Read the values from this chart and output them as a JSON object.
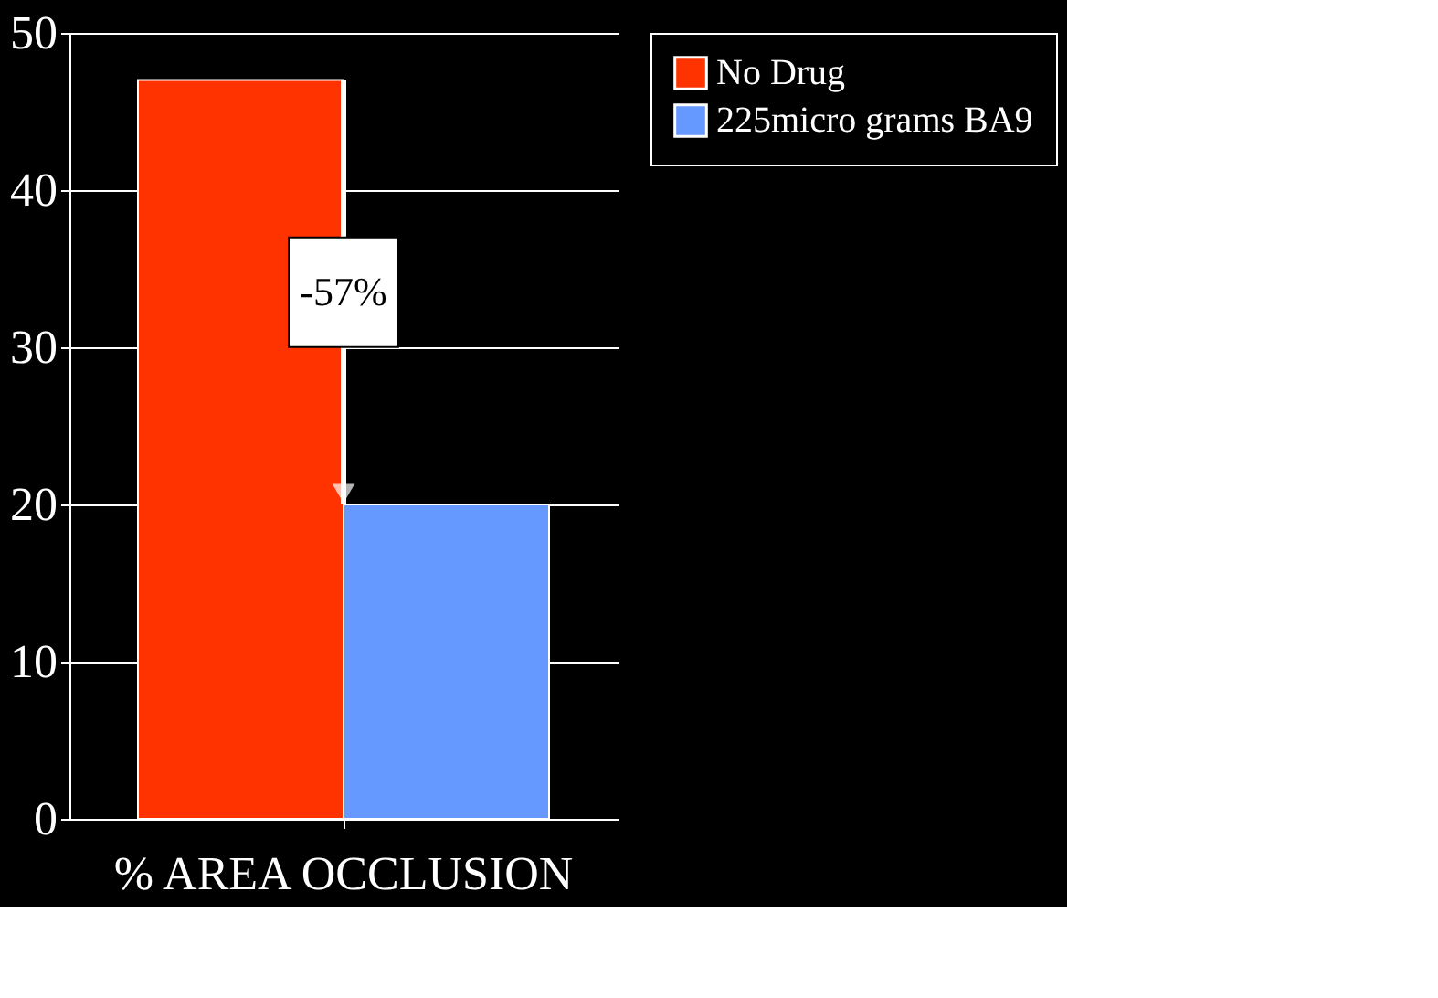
{
  "chart_data": {
    "type": "bar",
    "categories": [
      "% AREA OCCLUSION"
    ],
    "series": [
      {
        "name": "No Drug",
        "color": "#ff3300",
        "values": [
          47
        ]
      },
      {
        "name": "225micro grams BA9",
        "color": "#6699ff",
        "values": [
          20
        ]
      }
    ],
    "ylim": [
      0,
      50
    ],
    "yticks": [
      0,
      10,
      20,
      30,
      40,
      50
    ],
    "grid": "y",
    "legend": "right",
    "annotations": [
      "-57%"
    ]
  }
}
